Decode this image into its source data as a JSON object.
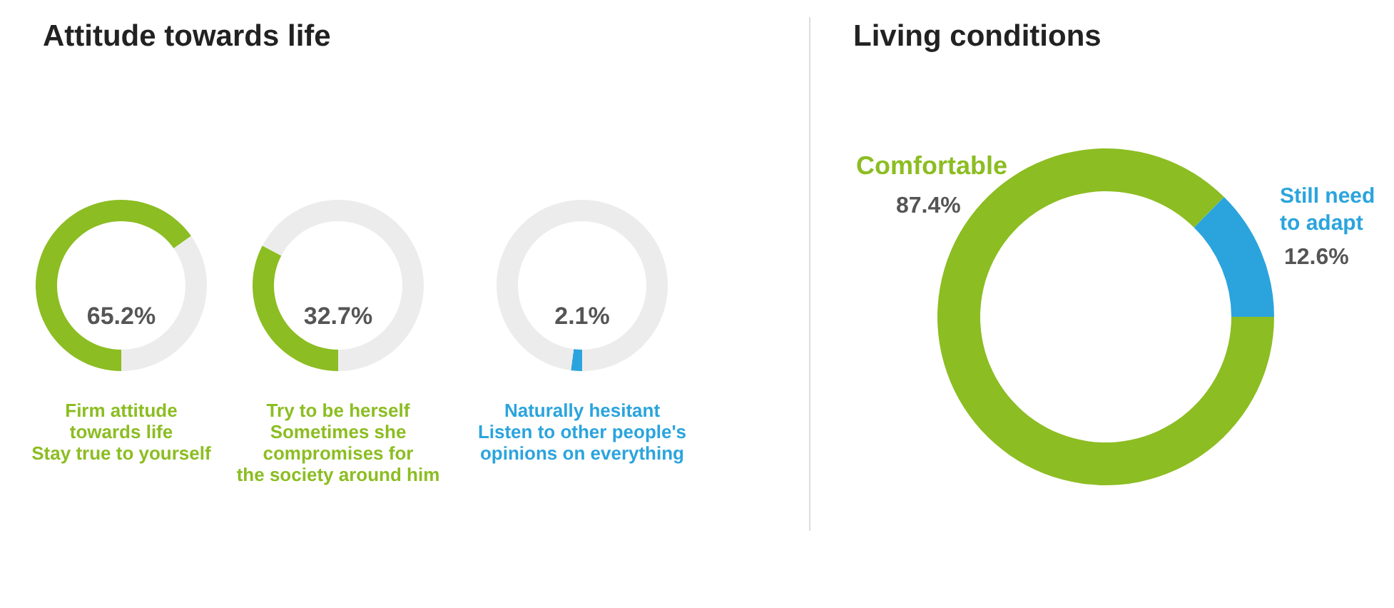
{
  "chart_data": [
    {
      "type": "donut",
      "title": "Attitude towards life",
      "categories": [
        "Firm attitude\ntowards life\nStay true to yourself",
        null
      ],
      "values": [
        65.2,
        34.8
      ],
      "colors": [
        "#8cbd22",
        "#ececec"
      ],
      "value_labels": [
        "65.2%",
        null
      ]
    },
    {
      "type": "donut",
      "categories": [
        "Try to be herself\nSometimes she\ncompromises for\nthe society around him",
        null
      ],
      "values": [
        32.7,
        67.3
      ],
      "colors": [
        "#8cbd22",
        "#ececec"
      ],
      "value_labels": [
        "32.7%",
        null
      ]
    },
    {
      "type": "donut",
      "categories": [
        "Naturally hesitant\nListen to other people's\nopinions on everything",
        null
      ],
      "values": [
        2.1,
        97.9
      ],
      "colors": [
        "#2ba4dd",
        "#ececec"
      ],
      "value_labels": [
        "2.1%",
        null
      ]
    },
    {
      "type": "donut",
      "title": "Living conditions",
      "categories": [
        "Comfortable",
        "Still need\nto adapt"
      ],
      "values": [
        87.4,
        12.6
      ],
      "colors": [
        "#8cbd22",
        "#2ba4dd"
      ],
      "value_labels": [
        "87.4%",
        "12.6%"
      ]
    }
  ]
}
